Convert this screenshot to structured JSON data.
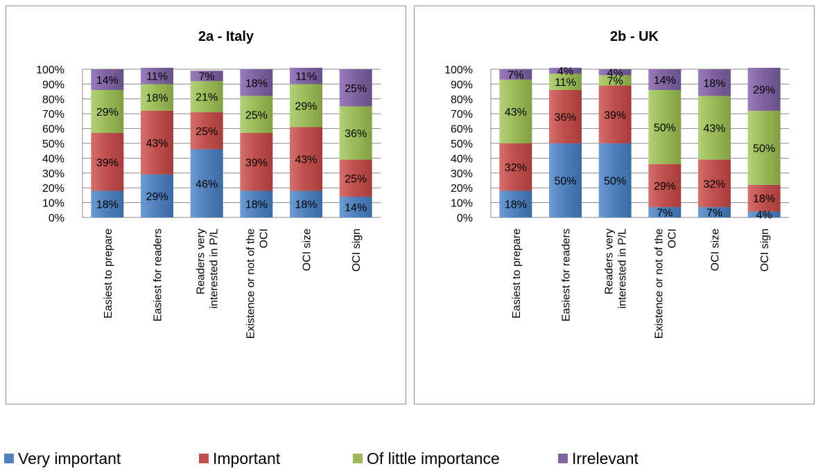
{
  "colors": {
    "very_important": "#4f81bd",
    "important": "#c0504d",
    "of_little_importance": "#9bbb59",
    "irrelevant": "#8064a2"
  },
  "legend": [
    {
      "label": "Very important",
      "color": "#4f81bd"
    },
    {
      "label": "Important",
      "color": "#c0504d"
    },
    {
      "label": "Of little importance",
      "color": "#9bbb59"
    },
    {
      "label": "Irrelevant",
      "color": "#8064a2"
    }
  ],
  "chart_data": [
    {
      "type": "bar",
      "stacked": true,
      "title": "2a - Italy",
      "categories": [
        "Easiest to prepare",
        "Easiest for readers",
        "Readers very interested in P/L",
        "Existence or not of the OCI",
        "OCI size",
        "OCI sign"
      ],
      "category_lines": [
        [
          "Easiest to prepare"
        ],
        [
          "Easiest for readers"
        ],
        [
          "Readers very",
          "interested in P/L"
        ],
        [
          "Existence or not of the",
          "OCI"
        ],
        [
          "OCI size"
        ],
        [
          "OCI sign"
        ]
      ],
      "y_ticks": [
        "0%",
        "10%",
        "20%",
        "30%",
        "40%",
        "50%",
        "60%",
        "70%",
        "80%",
        "90%",
        "100%"
      ],
      "ylim": [
        0,
        100
      ],
      "grid": true,
      "legend_position": "bottom",
      "series": [
        {
          "name": "Very important",
          "values": [
            18,
            29,
            46,
            18,
            18,
            14
          ],
          "labels": [
            "18%",
            "29%",
            "46%",
            "18%",
            "18%",
            "14%"
          ]
        },
        {
          "name": "Important",
          "values": [
            39,
            43,
            25,
            39,
            43,
            25
          ],
          "labels": [
            "39%",
            "43%",
            "25%",
            "39%",
            "43%",
            "25%"
          ]
        },
        {
          "name": "Of little importance",
          "values": [
            29,
            18,
            21,
            25,
            29,
            36
          ],
          "labels": [
            "29%",
            "18%",
            "21%",
            "25%",
            "29%",
            "36%"
          ]
        },
        {
          "name": "Irrelevant",
          "values": [
            14,
            11,
            7,
            18,
            11,
            25
          ],
          "labels": [
            "14%",
            "11%",
            "7%",
            "18%",
            "11%",
            "25%"
          ]
        }
      ]
    },
    {
      "type": "bar",
      "stacked": true,
      "title": "2b - UK",
      "categories": [
        "Easiest to prepare",
        "Easiest for readers",
        "Readers very interested in P/L",
        "Existence or not of the OCI",
        "OCI size",
        "OCI sign"
      ],
      "category_lines": [
        [
          "Easiest to prepare"
        ],
        [
          "Easiest for readers"
        ],
        [
          "Readers very",
          "interested in P/L"
        ],
        [
          "Existence or not of the",
          "OCI"
        ],
        [
          "OCI size"
        ],
        [
          "OCI sign"
        ]
      ],
      "y_ticks": [
        "0%",
        "10%",
        "20%",
        "30%",
        "40%",
        "50%",
        "60%",
        "70%",
        "80%",
        "90%",
        "100%"
      ],
      "ylim": [
        0,
        100
      ],
      "grid": true,
      "legend_position": "bottom",
      "series": [
        {
          "name": "Very important",
          "values": [
            18,
            50,
            50,
            7,
            7,
            4
          ],
          "labels": [
            "18%",
            "50%",
            "50%",
            "7%",
            "7%",
            "4%"
          ]
        },
        {
          "name": "Important",
          "values": [
            32,
            36,
            39,
            29,
            32,
            18
          ],
          "labels": [
            "32%",
            "36%",
            "39%",
            "29%",
            "32%",
            "18%"
          ]
        },
        {
          "name": "Of little importance",
          "values": [
            43,
            11,
            7,
            50,
            43,
            50
          ],
          "labels": [
            "43%",
            "11%",
            "7%",
            "50%",
            "43%",
            "50%"
          ]
        },
        {
          "name": "Irrelevant",
          "values": [
            7,
            4,
            4,
            14,
            18,
            29
          ],
          "labels": [
            "7%",
            "4%",
            "4%",
            "14%",
            "18%",
            "29%"
          ]
        }
      ]
    }
  ]
}
